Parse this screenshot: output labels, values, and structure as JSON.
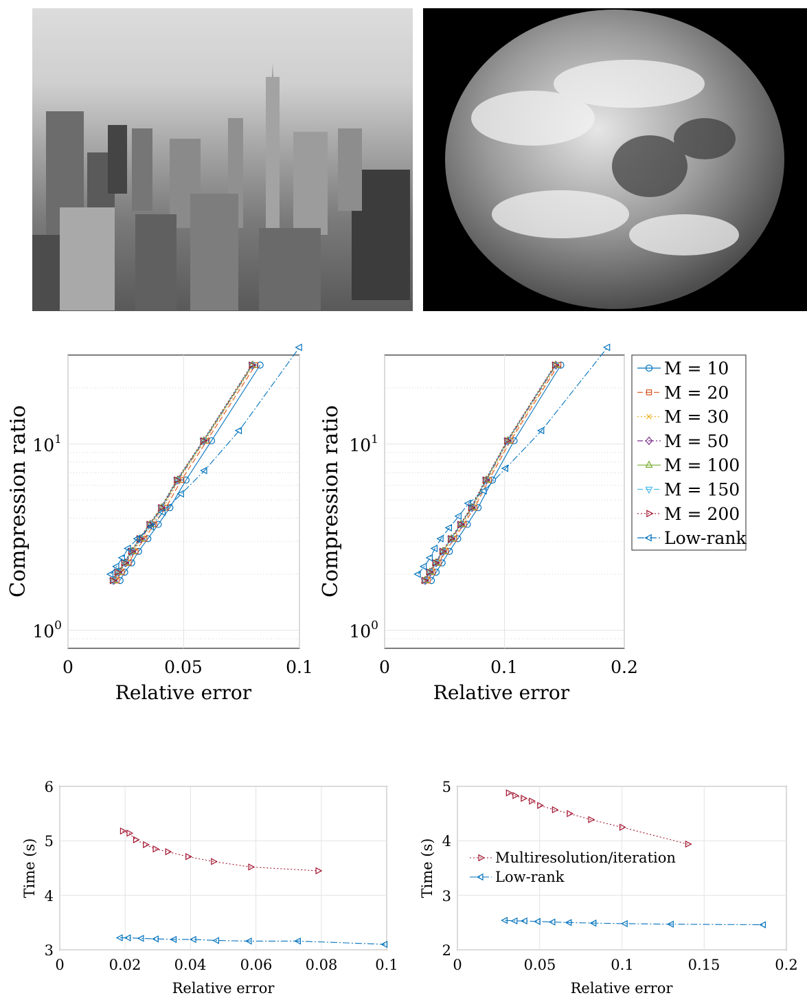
{
  "photos": [
    {
      "name": "city-skyline-photo"
    },
    {
      "name": "earth-globe-photo"
    }
  ],
  "colors": {
    "blue": "#0072BD",
    "orange": "#D95319",
    "yellow": "#EDB120",
    "purple": "#7E2F8E",
    "green": "#77AC30",
    "cyan": "#4DBEEE",
    "red": "#A2142F"
  },
  "chart_data": [
    {
      "id": "compression-city",
      "type": "line",
      "xlabel": "Relative error",
      "ylabel": "Compression ratio",
      "xlim": [
        0,
        0.1
      ],
      "ylim": [
        0.8,
        30
      ],
      "yscale": "log",
      "xticks": [
        "0",
        "0.05",
        "0.1"
      ],
      "yticks": [
        {
          "mant": "10",
          "exp": "0"
        },
        {
          "mant": "10",
          "exp": "1"
        }
      ],
      "grid": true,
      "series": [
        {
          "name": "M = 10",
          "color": "#0072BD",
          "marker": "circle",
          "dash": "",
          "x": [
            0.0225,
            0.0245,
            0.0275,
            0.0305,
            0.0345,
            0.039,
            0.044,
            0.051,
            0.062,
            0.083
          ],
          "y": [
            1.85,
            2.05,
            2.3,
            2.65,
            3.1,
            3.7,
            4.55,
            6.4,
            10.4,
            26.5
          ]
        },
        {
          "name": "M = 20",
          "color": "#D95319",
          "marker": "square",
          "dash": "8,4",
          "x": [
            0.021,
            0.0232,
            0.0262,
            0.0292,
            0.033,
            0.0373,
            0.0423,
            0.049,
            0.06,
            0.081
          ],
          "y": [
            1.85,
            2.05,
            2.3,
            2.65,
            3.1,
            3.7,
            4.55,
            6.4,
            10.4,
            26.5
          ]
        },
        {
          "name": "M = 30",
          "color": "#EDB120",
          "marker": "x",
          "dash": "2,3",
          "x": [
            0.0203,
            0.0224,
            0.0254,
            0.0284,
            0.032,
            0.0363,
            0.0413,
            0.048,
            0.0592,
            0.0802
          ],
          "y": [
            1.85,
            2.05,
            2.3,
            2.65,
            3.1,
            3.7,
            4.55,
            6.4,
            10.4,
            26.5
          ]
        },
        {
          "name": "M = 50",
          "color": "#7E2F8E",
          "marker": "diamond",
          "dash": "8,3,2,3",
          "x": [
            0.0198,
            0.0219,
            0.0249,
            0.0279,
            0.0315,
            0.0358,
            0.0407,
            0.0475,
            0.0588,
            0.0798
          ],
          "y": [
            1.85,
            2.05,
            2.3,
            2.65,
            3.1,
            3.7,
            4.55,
            6.4,
            10.4,
            26.5
          ]
        },
        {
          "name": "M = 100",
          "color": "#77AC30",
          "marker": "triangle-up",
          "dash": "",
          "x": [
            0.0195,
            0.0215,
            0.0245,
            0.0275,
            0.0311,
            0.0354,
            0.0404,
            0.0472,
            0.0586,
            0.0796
          ],
          "y": [
            1.85,
            2.05,
            2.3,
            2.65,
            3.1,
            3.7,
            4.55,
            6.4,
            10.4,
            26.5
          ]
        },
        {
          "name": "M = 150",
          "color": "#4DBEEE",
          "marker": "triangle-down",
          "dash": "8,4",
          "x": [
            0.0193,
            0.0213,
            0.0243,
            0.0273,
            0.0309,
            0.0352,
            0.0402,
            0.047,
            0.0584,
            0.0794
          ],
          "y": [
            1.85,
            2.05,
            2.3,
            2.65,
            3.1,
            3.7,
            4.55,
            6.4,
            10.4,
            26.5
          ]
        },
        {
          "name": "M = 200",
          "color": "#A2142F",
          "marker": "triangle-right",
          "dash": "2,3",
          "x": [
            0.0192,
            0.0212,
            0.0242,
            0.0272,
            0.0308,
            0.0351,
            0.0401,
            0.0469,
            0.0583,
            0.0793
          ],
          "y": [
            1.85,
            2.05,
            2.3,
            2.65,
            3.1,
            3.7,
            4.55,
            6.4,
            10.4,
            26.5
          ]
        },
        {
          "name": "Low-rank",
          "color": "#0072BD",
          "marker": "triangle-left",
          "dash": "10,3,2,3",
          "x": [
            0.0185,
            0.021,
            0.0235,
            0.026,
            0.03,
            0.036,
            0.041,
            0.049,
            0.059,
            0.074,
            0.1
          ],
          "y": [
            2.0,
            2.2,
            2.45,
            2.75,
            3.1,
            3.6,
            4.3,
            5.4,
            7.2,
            11.8,
            33.0
          ]
        }
      ]
    },
    {
      "id": "compression-earth",
      "type": "line",
      "xlabel": "Relative error",
      "ylabel": "Compression ratio",
      "xlim": [
        0,
        0.2
      ],
      "ylim": [
        0.8,
        30
      ],
      "yscale": "log",
      "xticks": [
        "0",
        "0.1",
        "0.2"
      ],
      "yticks": [
        {
          "mant": "10",
          "exp": "0"
        },
        {
          "mant": "10",
          "exp": "1"
        }
      ],
      "grid": true,
      "legend": {
        "placement": "outside-right",
        "entries": [
          "M = 10",
          "M = 20",
          "M = 30",
          "M = 50",
          "M = 100",
          "M = 150",
          "M = 200",
          "Low-rank"
        ]
      },
      "series": [
        {
          "name": "M = 10",
          "color": "#0072BD",
          "marker": "circle",
          "dash": "",
          "x": [
            0.039,
            0.043,
            0.048,
            0.054,
            0.061,
            0.069,
            0.078,
            0.09,
            0.108,
            0.147
          ],
          "y": [
            1.85,
            2.05,
            2.3,
            2.65,
            3.1,
            3.7,
            4.55,
            6.4,
            10.4,
            26.5
          ]
        },
        {
          "name": "M = 20",
          "color": "#D95319",
          "marker": "square",
          "dash": "8,4",
          "x": [
            0.036,
            0.04,
            0.045,
            0.051,
            0.058,
            0.066,
            0.075,
            0.087,
            0.105,
            0.145
          ],
          "y": [
            1.85,
            2.05,
            2.3,
            2.65,
            3.1,
            3.7,
            4.55,
            6.4,
            10.4,
            26.5
          ]
        },
        {
          "name": "M = 30",
          "color": "#EDB120",
          "marker": "x",
          "dash": "2,3",
          "x": [
            0.035,
            0.039,
            0.044,
            0.05,
            0.057,
            0.065,
            0.074,
            0.086,
            0.104,
            0.144
          ],
          "y": [
            1.85,
            2.05,
            2.3,
            2.65,
            3.1,
            3.7,
            4.55,
            6.4,
            10.4,
            26.5
          ]
        },
        {
          "name": "M = 50",
          "color": "#7E2F8E",
          "marker": "diamond",
          "dash": "8,3,2,3",
          "x": [
            0.034,
            0.038,
            0.043,
            0.049,
            0.056,
            0.064,
            0.073,
            0.085,
            0.103,
            0.143
          ],
          "y": [
            1.85,
            2.05,
            2.3,
            2.65,
            3.1,
            3.7,
            4.55,
            6.4,
            10.4,
            26.5
          ]
        },
        {
          "name": "M = 100",
          "color": "#77AC30",
          "marker": "triangle-up",
          "dash": "",
          "x": [
            0.0335,
            0.0375,
            0.0425,
            0.0485,
            0.0555,
            0.0635,
            0.0725,
            0.0845,
            0.1025,
            0.1425
          ],
          "y": [
            1.85,
            2.05,
            2.3,
            2.65,
            3.1,
            3.7,
            4.55,
            6.4,
            10.4,
            26.5
          ]
        },
        {
          "name": "M = 150",
          "color": "#4DBEEE",
          "marker": "triangle-down",
          "dash": "8,4",
          "x": [
            0.0332,
            0.0372,
            0.0422,
            0.0482,
            0.0552,
            0.0632,
            0.0722,
            0.0842,
            0.1022,
            0.1422
          ],
          "y": [
            1.85,
            2.05,
            2.3,
            2.65,
            3.1,
            3.7,
            4.55,
            6.4,
            10.4,
            26.5
          ]
        },
        {
          "name": "M = 200",
          "color": "#A2142F",
          "marker": "triangle-right",
          "dash": "2,3",
          "x": [
            0.033,
            0.037,
            0.042,
            0.048,
            0.055,
            0.063,
            0.072,
            0.084,
            0.102,
            0.142
          ],
          "y": [
            1.85,
            2.05,
            2.3,
            2.65,
            3.1,
            3.7,
            4.55,
            6.4,
            10.4,
            26.5
          ]
        },
        {
          "name": "Low-rank",
          "color": "#0072BD",
          "marker": "triangle-left",
          "dash": "10,3,2,3",
          "x": [
            0.028,
            0.033,
            0.038,
            0.042,
            0.047,
            0.054,
            0.062,
            0.07,
            0.083,
            0.101,
            0.131,
            0.186
          ],
          "y": [
            2.0,
            2.2,
            2.45,
            2.75,
            3.1,
            3.55,
            4.1,
            4.8,
            5.6,
            7.4,
            11.8,
            33.0
          ]
        }
      ]
    },
    {
      "id": "time-city",
      "type": "line",
      "xlabel": "Relative error",
      "ylabel": "Time (s)",
      "xlim": [
        0,
        0.1
      ],
      "ylim": [
        3,
        6
      ],
      "xticks": [
        "0",
        "0.02",
        "0.04",
        "0.06",
        "0.08",
        "0.1"
      ],
      "yticks": [
        "3",
        "4",
        "5",
        "6"
      ],
      "grid": true,
      "series": [
        {
          "name": "Multiresolution/iteration",
          "color": "#A2142F",
          "marker": "triangle-right",
          "dash": "2,3",
          "x": [
            0.0192,
            0.0212,
            0.0232,
            0.0262,
            0.0292,
            0.033,
            0.0392,
            0.047,
            0.0584,
            0.079
          ],
          "y": [
            5.18,
            5.14,
            5.02,
            4.93,
            4.85,
            4.8,
            4.71,
            4.62,
            4.52,
            4.45
          ]
        },
        {
          "name": "Low-rank",
          "color": "#0072BD",
          "marker": "triangle-left",
          "dash": "10,3,2,3",
          "x": [
            0.0185,
            0.021,
            0.025,
            0.0295,
            0.035,
            0.041,
            0.048,
            0.058,
            0.073,
            0.0995
          ],
          "y": [
            3.22,
            3.22,
            3.21,
            3.2,
            3.19,
            3.19,
            3.17,
            3.16,
            3.16,
            3.1
          ]
        }
      ]
    },
    {
      "id": "time-earth",
      "type": "line",
      "xlabel": "Relative error",
      "ylabel": "Time (s)",
      "xlim": [
        0,
        0.2
      ],
      "ylim": [
        2,
        5
      ],
      "xticks": [
        "0",
        "0.05",
        "0.1",
        "0.15",
        "0.2"
      ],
      "yticks": [
        "2",
        "3",
        "4",
        "5"
      ],
      "grid": true,
      "legend": {
        "placement": "middle-left",
        "entries": [
          "Multiresolution/iteration",
          "Low-rank"
        ]
      },
      "series": [
        {
          "name": "Multiresolution/iteration",
          "color": "#A2142F",
          "marker": "triangle-right",
          "dash": "2,3",
          "x": [
            0.031,
            0.035,
            0.04,
            0.045,
            0.05,
            0.059,
            0.068,
            0.081,
            0.1,
            0.14
          ],
          "y": [
            4.88,
            4.83,
            4.78,
            4.73,
            4.65,
            4.57,
            4.5,
            4.39,
            4.25,
            3.94
          ]
        },
        {
          "name": "Low-rank",
          "color": "#0072BD",
          "marker": "triangle-left",
          "dash": "10,3,2,3",
          "x": [
            0.029,
            0.035,
            0.041,
            0.049,
            0.058,
            0.068,
            0.083,
            0.102,
            0.13,
            0.186
          ],
          "y": [
            2.54,
            2.53,
            2.53,
            2.52,
            2.51,
            2.5,
            2.49,
            2.48,
            2.47,
            2.46
          ]
        }
      ]
    }
  ]
}
